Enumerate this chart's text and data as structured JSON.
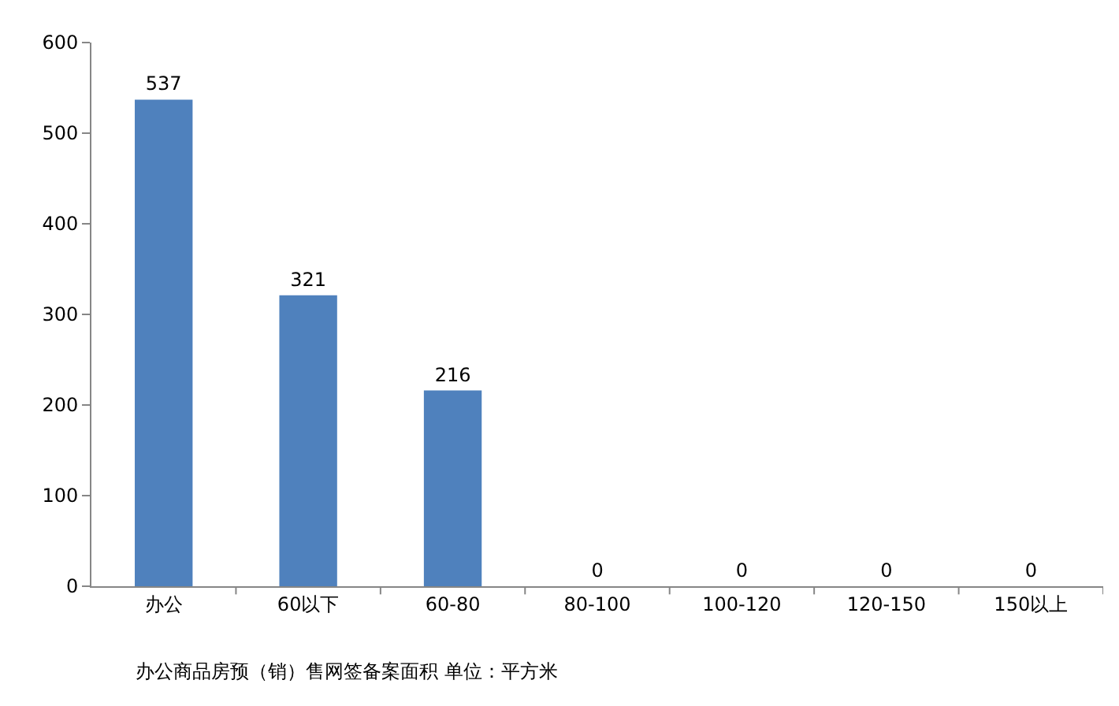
{
  "chart_data": {
    "type": "bar",
    "categories": [
      "办公",
      "60以下",
      "60-80",
      "80-100",
      "100-120",
      "120-150",
      "150以上"
    ],
    "values": [
      537,
      321,
      216,
      0,
      0,
      0,
      0
    ],
    "color": "#4f81bd",
    "ylim": [
      0,
      600
    ],
    "yticks": [
      0,
      100,
      200,
      300,
      400,
      500,
      600
    ],
    "data_labels": true,
    "annotations": [
      "办公商品房预（销）售网签备案面积 单位：平方米"
    ]
  }
}
